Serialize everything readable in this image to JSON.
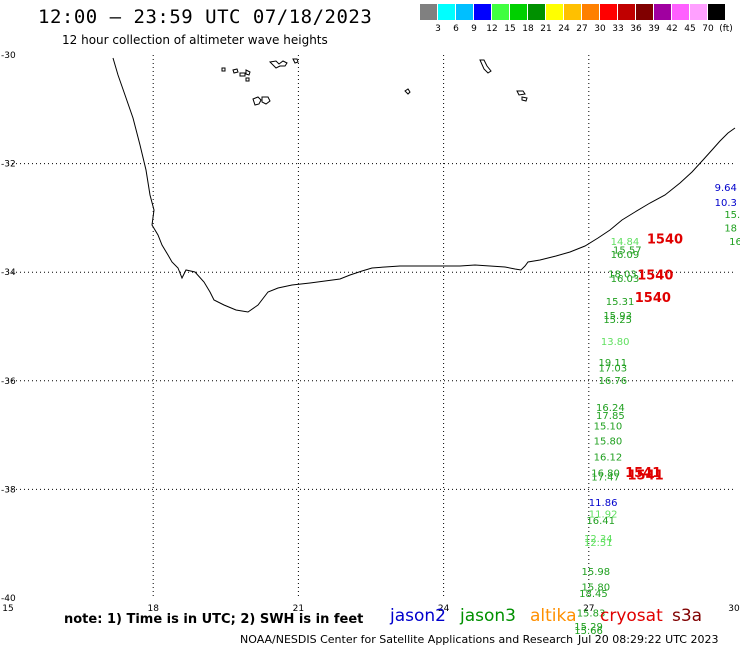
{
  "header": {
    "title": "12:00 – 23:59 UTC 07/18/2023",
    "subtitle": "12 hour collection of altimeter wave heights"
  },
  "scale": {
    "unit": "(ft)",
    "colors": [
      "#808080",
      "#00ffff",
      "#00bfff",
      "#0000ff",
      "#40ff40",
      "#00d000",
      "#009000",
      "#ffff00",
      "#ffc000",
      "#ff8000",
      "#ff0000",
      "#c00000",
      "#800000",
      "#a000a0",
      "#ff60ff",
      "#ffa0ff",
      "#000000"
    ],
    "labels": [
      "3",
      "6",
      "9",
      "12",
      "15",
      "18",
      "21",
      "24",
      "27",
      "30",
      "33",
      "36",
      "39",
      "42",
      "45",
      "70"
    ]
  },
  "map_extent": {
    "lon_min": 15,
    "lon_max": 30,
    "lat_min": -40,
    "lat_max": -30
  },
  "axes": {
    "lon_ticks": [
      "15",
      "18",
      "21",
      "24",
      "27",
      "30"
    ],
    "lat_ticks": [
      "-30",
      "-32",
      "-34",
      "-36",
      "-38",
      "-40"
    ]
  },
  "observations": [
    {
      "lon": 29.6,
      "lat": -32.5,
      "text": "9.64",
      "color": "#0000cc"
    },
    {
      "lon": 29.6,
      "lat": -32.78,
      "text": "10.3",
      "color": "#0000cc"
    },
    {
      "lon": 29.8,
      "lat": -33.0,
      "text": "15.",
      "color": "#20a020"
    },
    {
      "lon": 29.8,
      "lat": -33.25,
      "text": "18",
      "color": "#20a020"
    },
    {
      "lon": 29.9,
      "lat": -33.5,
      "text": "16",
      "color": "#20a020"
    },
    {
      "lon": 27.45,
      "lat": -33.5,
      "text": "14.84",
      "color": "#60e060"
    },
    {
      "lon": 27.5,
      "lat": -33.66,
      "text": "15.57",
      "color": "#20a020"
    },
    {
      "lon": 27.45,
      "lat": -33.74,
      "text": "16.09",
      "color": "#20a020"
    },
    {
      "lon": 27.4,
      "lat": -34.1,
      "text": "18.03",
      "color": "#20a020"
    },
    {
      "lon": 27.45,
      "lat": -34.18,
      "text": "16.03",
      "color": "#20a020"
    },
    {
      "lon": 27.35,
      "lat": -34.6,
      "text": "15.31",
      "color": "#20a020"
    },
    {
      "lon": 27.3,
      "lat": -34.86,
      "text": "15.93",
      "color": "#20a020"
    },
    {
      "lon": 27.3,
      "lat": -34.94,
      "text": "15.25",
      "color": "#20a020"
    },
    {
      "lon": 27.25,
      "lat": -35.34,
      "text": "13.80",
      "color": "#60e060"
    },
    {
      "lon": 27.2,
      "lat": -35.73,
      "text": "19.11",
      "color": "#20a020"
    },
    {
      "lon": 27.2,
      "lat": -35.83,
      "text": "17.03",
      "color": "#20a020"
    },
    {
      "lon": 27.2,
      "lat": -36.06,
      "text": "16.76",
      "color": "#20a020"
    },
    {
      "lon": 27.15,
      "lat": -36.56,
      "text": "16.24",
      "color": "#20a020"
    },
    {
      "lon": 27.15,
      "lat": -36.7,
      "text": "17.85",
      "color": "#20a020"
    },
    {
      "lon": 27.1,
      "lat": -36.9,
      "text": "15.10",
      "color": "#20a020"
    },
    {
      "lon": 27.1,
      "lat": -37.17,
      "text": "15.80",
      "color": "#20a020"
    },
    {
      "lon": 27.1,
      "lat": -37.47,
      "text": "16.12",
      "color": "#20a020"
    },
    {
      "lon": 27.05,
      "lat": -37.76,
      "text": "16.80",
      "color": "#20a020"
    },
    {
      "lon": 27.05,
      "lat": -37.84,
      "text": "17.47",
      "color": "#20a020"
    },
    {
      "lon": 27.0,
      "lat": -38.31,
      "text": "11.86",
      "color": "#0000cc"
    },
    {
      "lon": 27.0,
      "lat": -38.52,
      "text": "11.92",
      "color": "#60e060"
    },
    {
      "lon": 26.95,
      "lat": -38.64,
      "text": "16.41",
      "color": "#20a020"
    },
    {
      "lon": 26.9,
      "lat": -38.97,
      "text": "12.34",
      "color": "#60e060"
    },
    {
      "lon": 26.9,
      "lat": -39.04,
      "text": "12.51",
      "color": "#60e060"
    },
    {
      "lon": 26.85,
      "lat": -39.58,
      "text": "15.98",
      "color": "#20a020"
    },
    {
      "lon": 26.85,
      "lat": -39.86,
      "text": "15.80",
      "color": "#20a020"
    },
    {
      "lon": 26.8,
      "lat": -39.98,
      "text": "18.45",
      "color": "#20a020"
    },
    {
      "lon": 26.75,
      "lat": -40.34,
      "text": "15.83",
      "color": "#20a020"
    },
    {
      "lon": 26.7,
      "lat": -40.59,
      "text": "15.29",
      "color": "#20a020"
    },
    {
      "lon": 26.7,
      "lat": -40.66,
      "text": "15.66",
      "color": "#20a020"
    }
  ],
  "cryosat_times": [
    {
      "lon": 28.2,
      "lat": -33.47,
      "text": "1540"
    },
    {
      "lon": 28.0,
      "lat": -34.13,
      "text": "1540"
    },
    {
      "lon": 27.95,
      "lat": -34.55,
      "text": "1540"
    },
    {
      "lon": 27.75,
      "lat": -37.77,
      "text": "1541"
    },
    {
      "lon": 27.8,
      "lat": -37.82,
      "text": "1541"
    }
  ],
  "footer": {
    "note": "note: 1) Time is in UTC; 2) SWH is in feet",
    "satellites": [
      {
        "name": "jason2",
        "color": "#0000cc"
      },
      {
        "name": "jason3",
        "color": "#009000"
      },
      {
        "name": "altika",
        "color": "#ff9000"
      },
      {
        "name": "cryosat",
        "color": "#e00000"
      },
      {
        "name": "s3a",
        "color": "#800000"
      }
    ],
    "credit": "NOAA/NESDIS Center for Satellite Applications and Research",
    "timestamp": "Jul 20 08:29:22 UTC 2023"
  }
}
